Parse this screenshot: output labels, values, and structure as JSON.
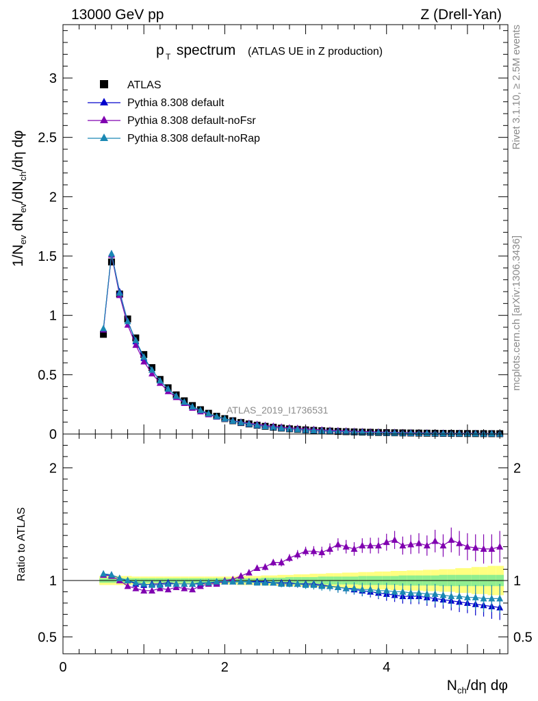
{
  "header": {
    "energy_label": "13000 GeV pp",
    "process_label": "Z (Drell-Yan)"
  },
  "side_text": {
    "rivet": "Rivet 3.1.10, ≥ 2.5M events",
    "mcplots": "mcplots.cern.ch [arXiv:1306.3436]"
  },
  "chart_data": [
    {
      "type": "scatter",
      "title_main": "p",
      "title_sub": "T",
      "title_rest": " spectrum",
      "title_paren": "(ATLAS UE in Z production)",
      "watermark": "ATLAS_2019_I1736531",
      "ylabel": "1/N_ev dN_ev/dN_ch/dη dφ",
      "xlim": [
        0,
        5.5
      ],
      "ylim": [
        0,
        3.45
      ],
      "yticks": [
        "0",
        "0.5",
        "1",
        "1.5",
        "2",
        "2.5",
        "3"
      ],
      "ytick_values": [
        0,
        0.5,
        1,
        1.5,
        2,
        2.5,
        3
      ],
      "legend_position": "top-left",
      "x": [
        0.5,
        0.6,
        0.7,
        0.8,
        0.9,
        1.0,
        1.1,
        1.2,
        1.3,
        1.4,
        1.5,
        1.6,
        1.7,
        1.8,
        1.9,
        2.0,
        2.1,
        2.2,
        2.3,
        2.4,
        2.5,
        2.6,
        2.7,
        2.8,
        2.9,
        3.0,
        3.1,
        3.2,
        3.3,
        3.4,
        3.5,
        3.6,
        3.7,
        3.8,
        3.9,
        4.0,
        4.1,
        4.2,
        4.3,
        4.4,
        4.5,
        4.6,
        4.7,
        4.8,
        4.9,
        5.0,
        5.1,
        5.2,
        5.3,
        5.4
      ],
      "series": [
        {
          "name": "ATLAS",
          "color": "#000000",
          "marker": "square",
          "values": [
            0.84,
            1.45,
            1.18,
            0.97,
            0.81,
            0.67,
            0.56,
            0.46,
            0.39,
            0.33,
            0.28,
            0.24,
            0.205,
            0.175,
            0.15,
            0.13,
            0.112,
            0.097,
            0.085,
            0.074,
            0.065,
            0.057,
            0.05,
            0.044,
            0.039,
            0.035,
            0.031,
            0.028,
            0.025,
            0.022,
            0.02,
            0.018,
            0.016,
            0.0145,
            0.013,
            0.0118,
            0.0106,
            0.0096,
            0.0087,
            0.0079,
            0.0071,
            0.0064,
            0.0058,
            0.0052,
            0.0047,
            0.0043,
            0.0039,
            0.0035,
            0.0032,
            0.0029
          ]
        },
        {
          "name": "Pythia 8.308 default",
          "color": "#0000cc",
          "marker": "triangle",
          "values": [
            0.88,
            1.52,
            1.2,
            0.95,
            0.78,
            0.64,
            0.54,
            0.45,
            0.38,
            0.32,
            0.27,
            0.23,
            0.2,
            0.17,
            0.146,
            0.128,
            0.11,
            0.096,
            0.084,
            0.073,
            0.064,
            0.056,
            0.049,
            0.043,
            0.038,
            0.034,
            0.03,
            0.027,
            0.024,
            0.021,
            0.019,
            0.017,
            0.015,
            0.013,
            0.012,
            0.011,
            0.0095,
            0.0086,
            0.0078,
            0.007,
            0.0063,
            0.0057,
            0.0051,
            0.0046,
            0.0041,
            0.0037,
            0.0034,
            0.003,
            0.0027,
            0.0024
          ]
        },
        {
          "name": "Pythia 8.308 default-noFsr",
          "color": "#8000b0",
          "marker": "triangle",
          "values": [
            0.88,
            1.51,
            1.17,
            0.92,
            0.75,
            0.61,
            0.51,
            0.43,
            0.36,
            0.31,
            0.26,
            0.22,
            0.19,
            0.165,
            0.145,
            0.128,
            0.113,
            0.101,
            0.091,
            0.082,
            0.073,
            0.066,
            0.059,
            0.053,
            0.048,
            0.044,
            0.039,
            0.035,
            0.032,
            0.029,
            0.026,
            0.023,
            0.021,
            0.019,
            0.017,
            0.0155,
            0.014,
            0.0126,
            0.0114,
            0.0103,
            0.0093,
            0.0084,
            0.0076,
            0.0068,
            0.0062,
            0.0056,
            0.005,
            0.0045,
            0.0041,
            0.0037
          ]
        },
        {
          "name": "Pythia 8.308 default-noRap",
          "color": "#1a88b3",
          "marker": "triangle",
          "values": [
            0.89,
            1.52,
            1.19,
            0.95,
            0.79,
            0.65,
            0.54,
            0.45,
            0.38,
            0.32,
            0.27,
            0.23,
            0.2,
            0.172,
            0.148,
            0.129,
            0.111,
            0.097,
            0.085,
            0.074,
            0.064,
            0.056,
            0.049,
            0.043,
            0.038,
            0.034,
            0.03,
            0.027,
            0.024,
            0.021,
            0.019,
            0.017,
            0.015,
            0.013,
            0.012,
            0.011,
            0.0095,
            0.0085,
            0.0077,
            0.007,
            0.0062,
            0.0056,
            0.005,
            0.0045,
            0.004,
            0.0036,
            0.0033,
            0.003,
            0.0027,
            0.0024
          ]
        }
      ]
    },
    {
      "type": "scatter",
      "ylabel": "Ratio to ATLAS",
      "xlabel": "N_ch/dη dφ",
      "xlim": [
        0,
        5.5
      ],
      "ylim": [
        0.35,
        2.3
      ],
      "yticks": [
        "0.5",
        "1",
        "2"
      ],
      "ytick_values": [
        0.5,
        1,
        2
      ],
      "xticks": [
        "0",
        "2",
        "4"
      ],
      "xtick_values": [
        0,
        2,
        4
      ],
      "band_inner_color": "#90ee90",
      "band_outer_color": "#ffff80",
      "band_inner": [
        0.02,
        0.02,
        0.02,
        0.02,
        0.02,
        0.02,
        0.02,
        0.02,
        0.02,
        0.02,
        0.02,
        0.02,
        0.02,
        0.02,
        0.02,
        0.02,
        0.02,
        0.02,
        0.02,
        0.02,
        0.025,
        0.025,
        0.025,
        0.03,
        0.03,
        0.03,
        0.03,
        0.035,
        0.035,
        0.035,
        0.035,
        0.035,
        0.04,
        0.04,
        0.04,
        0.04,
        0.04,
        0.045,
        0.045,
        0.045,
        0.045,
        0.045,
        0.05,
        0.05,
        0.05,
        0.05,
        0.05,
        0.05,
        0.05,
        0.05
      ],
      "band_outer": [
        0.04,
        0.04,
        0.04,
        0.04,
        0.035,
        0.035,
        0.035,
        0.035,
        0.035,
        0.035,
        0.035,
        0.035,
        0.035,
        0.035,
        0.035,
        0.035,
        0.035,
        0.04,
        0.04,
        0.04,
        0.045,
        0.045,
        0.05,
        0.05,
        0.055,
        0.055,
        0.06,
        0.06,
        0.065,
        0.065,
        0.07,
        0.07,
        0.075,
        0.075,
        0.08,
        0.08,
        0.085,
        0.085,
        0.09,
        0.09,
        0.095,
        0.095,
        0.1,
        0.1,
        0.11,
        0.11,
        0.12,
        0.12,
        0.13,
        0.13
      ],
      "series": [
        {
          "name": "Pythia 8.308 default",
          "color": "#0000cc",
          "values": [
            1.05,
            1.05,
            1.02,
            1.0,
            0.97,
            0.96,
            0.97,
            0.97,
            0.98,
            0.97,
            0.97,
            0.97,
            0.97,
            0.98,
            0.98,
            0.99,
            0.99,
            0.99,
            0.99,
            0.99,
            0.99,
            0.98,
            0.98,
            0.98,
            0.97,
            0.97,
            0.97,
            0.96,
            0.95,
            0.94,
            0.93,
            0.92,
            0.91,
            0.9,
            0.89,
            0.88,
            0.87,
            0.86,
            0.86,
            0.86,
            0.85,
            0.84,
            0.83,
            0.82,
            0.81,
            0.8,
            0.79,
            0.78,
            0.77,
            0.76
          ],
          "errors": [
            0.01,
            0.01,
            0.01,
            0.01,
            0.01,
            0.01,
            0.01,
            0.01,
            0.01,
            0.01,
            0.01,
            0.01,
            0.01,
            0.01,
            0.01,
            0.015,
            0.015,
            0.015,
            0.02,
            0.02,
            0.02,
            0.02,
            0.025,
            0.025,
            0.03,
            0.03,
            0.03,
            0.035,
            0.035,
            0.04,
            0.04,
            0.045,
            0.05,
            0.05,
            0.055,
            0.06,
            0.06,
            0.065,
            0.07,
            0.07,
            0.075,
            0.08,
            0.08,
            0.085,
            0.09,
            0.09,
            0.1,
            0.1,
            0.11,
            0.11
          ]
        },
        {
          "name": "Pythia 8.308 default-noFsr",
          "color": "#8000b0",
          "values": [
            1.05,
            1.04,
            1.0,
            0.95,
            0.93,
            0.91,
            0.91,
            0.93,
            0.92,
            0.94,
            0.93,
            0.92,
            0.95,
            0.97,
            0.97,
            1.0,
            1.01,
            1.04,
            1.07,
            1.11,
            1.12,
            1.16,
            1.16,
            1.2,
            1.23,
            1.26,
            1.26,
            1.25,
            1.28,
            1.32,
            1.3,
            1.28,
            1.31,
            1.31,
            1.31,
            1.34,
            1.36,
            1.31,
            1.32,
            1.33,
            1.31,
            1.35,
            1.31,
            1.36,
            1.33,
            1.3,
            1.29,
            1.28,
            1.28,
            1.3
          ],
          "errors": [
            0.01,
            0.01,
            0.01,
            0.01,
            0.01,
            0.01,
            0.01,
            0.01,
            0.01,
            0.01,
            0.01,
            0.01,
            0.01,
            0.01,
            0.02,
            0.02,
            0.02,
            0.02,
            0.025,
            0.025,
            0.03,
            0.03,
            0.035,
            0.035,
            0.04,
            0.04,
            0.045,
            0.05,
            0.05,
            0.055,
            0.06,
            0.06,
            0.065,
            0.07,
            0.07,
            0.075,
            0.08,
            0.08,
            0.085,
            0.09,
            0.09,
            0.1,
            0.1,
            0.11,
            0.11,
            0.12,
            0.12,
            0.13,
            0.13,
            0.14
          ]
        },
        {
          "name": "Pythia 8.308 default-noRap",
          "color": "#1a88b3",
          "values": [
            1.06,
            1.05,
            1.02,
            1.0,
            0.98,
            0.97,
            0.96,
            0.96,
            0.97,
            0.97,
            0.97,
            0.97,
            0.98,
            0.98,
            0.99,
            0.99,
            0.99,
            0.99,
            0.99,
            0.98,
            0.98,
            0.98,
            0.97,
            0.97,
            0.97,
            0.96,
            0.96,
            0.95,
            0.95,
            0.94,
            0.93,
            0.93,
            0.92,
            0.92,
            0.91,
            0.91,
            0.9,
            0.9,
            0.89,
            0.89,
            0.88,
            0.88,
            0.87,
            0.86,
            0.86,
            0.85,
            0.85,
            0.84,
            0.84,
            0.84
          ],
          "errors": [
            0.01,
            0.01,
            0.01,
            0.01,
            0.01,
            0.01,
            0.01,
            0.01,
            0.01,
            0.01,
            0.01,
            0.01,
            0.01,
            0.01,
            0.015,
            0.015,
            0.015,
            0.02,
            0.02,
            0.02,
            0.025,
            0.025,
            0.03,
            0.03,
            0.035,
            0.035,
            0.04,
            0.04,
            0.045,
            0.05,
            0.05,
            0.055,
            0.06,
            0.06,
            0.065,
            0.07,
            0.07,
            0.075,
            0.08,
            0.08,
            0.085,
            0.09,
            0.09,
            0.1,
            0.1,
            0.11,
            0.11,
            0.12,
            0.12,
            0.13
          ]
        }
      ]
    }
  ]
}
